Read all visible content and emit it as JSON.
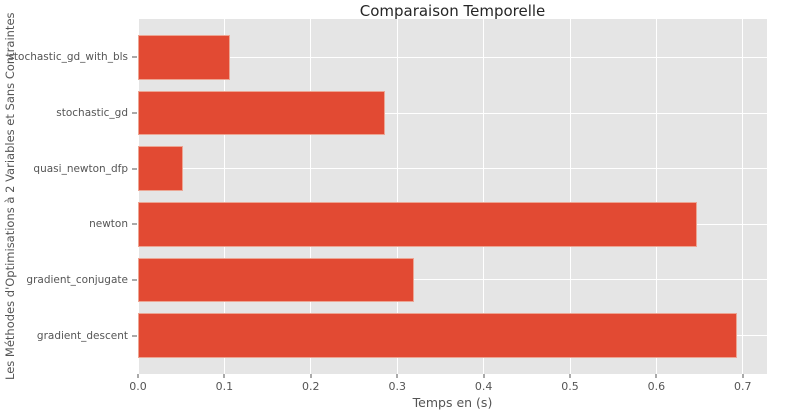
{
  "chart_data": {
    "type": "bar",
    "orientation": "horizontal",
    "title": "Comparaison Temporelle",
    "xlabel": "Temps en (s)",
    "ylabel": "Les Méthodes d'Optimisations à 2 Variables et Sans Contraintes",
    "categories_order": "top-to-bottom",
    "categories": [
      "stochastic_gd_with_bls",
      "stochastic_gd",
      "quasi_newton_dfp",
      "newton",
      "gradient_conjugate",
      "gradient_descent"
    ],
    "values": [
      0.107,
      0.286,
      0.052,
      0.647,
      0.319,
      0.693
    ],
    "xlim": [
      0,
      0.728
    ],
    "ylim_units": [
      -0.69,
      5.69
    ],
    "bar_height_units": 0.8,
    "xticks": {
      "values": [
        0.0,
        0.1,
        0.2,
        0.3,
        0.4,
        0.5,
        0.6,
        0.7
      ],
      "labels": [
        "0.0",
        "0.1",
        "0.2",
        "0.3",
        "0.4",
        "0.5",
        "0.6",
        "0.7"
      ]
    },
    "grid": true,
    "legend": false,
    "colors": {
      "bar": "#E24A33",
      "bar_edge": "#ECA593",
      "plot_bg": "#E5E5E5",
      "grid": "#FFFFFF",
      "tick_text": "#555555",
      "title_text": "#262626",
      "tick_mark": "#555555"
    }
  }
}
